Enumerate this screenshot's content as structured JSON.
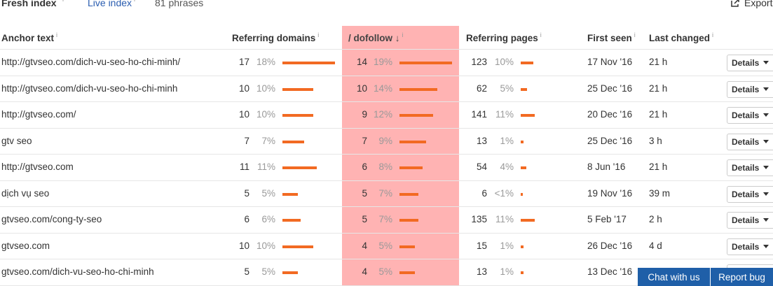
{
  "tabs": {
    "fresh_index": "Fresh index",
    "live_index": "Live index",
    "info_glyph": "i",
    "phrases": "81 phrases"
  },
  "export_label": "Export",
  "headers": {
    "anchor": "Anchor text",
    "ref_domains": "Referring domains",
    "dofollow": "/ dofollow",
    "dofollow_arrow": "↓",
    "ref_pages": "Referring pages",
    "first_seen": "First seen",
    "last_changed": "Last changed",
    "info": "i"
  },
  "details_label": "Details",
  "rows": [
    {
      "anchor": "http://gtvseo.com/dich-vu-seo-ho-chi-minh/",
      "rd": "17",
      "rd_pct": "18%",
      "rd_frac": 1.0,
      "df": "14",
      "df_pct": "19%",
      "df_frac": 1.0,
      "rp": "123",
      "rp_pct": "10%",
      "rp_frac": 0.24,
      "first": "17 Nov '16",
      "changed": "21 h"
    },
    {
      "anchor": "http://gtvseo.com/dich-vu-seo-ho-chi-minh",
      "rd": "10",
      "rd_pct": "10%",
      "rd_frac": 0.59,
      "df": "10",
      "df_pct": "14%",
      "df_frac": 0.72,
      "rp": "62",
      "rp_pct": "5%",
      "rp_frac": 0.12,
      "first": "25 Dec '16",
      "changed": "21 h"
    },
    {
      "anchor": "http://gtvseo.com/",
      "rd": "10",
      "rd_pct": "10%",
      "rd_frac": 0.59,
      "df": "9",
      "df_pct": "12%",
      "df_frac": 0.64,
      "rp": "141",
      "rp_pct": "11%",
      "rp_frac": 0.26,
      "first": "20 Dec '16",
      "changed": "21 h"
    },
    {
      "anchor": "gtv seo",
      "rd": "7",
      "rd_pct": "7%",
      "rd_frac": 0.41,
      "df": "7",
      "df_pct": "9%",
      "df_frac": 0.5,
      "rp": "13",
      "rp_pct": "1%",
      "rp_frac": 0.05,
      "first": "25 Dec '16",
      "changed": "3 h"
    },
    {
      "anchor": "http://gtvseo.com",
      "rd": "11",
      "rd_pct": "11%",
      "rd_frac": 0.65,
      "df": "6",
      "df_pct": "8%",
      "df_frac": 0.44,
      "rp": "54",
      "rp_pct": "4%",
      "rp_frac": 0.1,
      "first": "8 Jun '16",
      "changed": "21 h"
    },
    {
      "anchor": "dịch vụ seo",
      "rd": "5",
      "rd_pct": "5%",
      "rd_frac": 0.29,
      "df": "5",
      "df_pct": "7%",
      "df_frac": 0.36,
      "rp": "6",
      "rp_pct": "<1%",
      "rp_frac": 0.03,
      "first": "19 Nov '16",
      "changed": "39 m"
    },
    {
      "anchor": "gtvseo.com/cong-ty-seo",
      "rd": "6",
      "rd_pct": "6%",
      "rd_frac": 0.35,
      "df": "5",
      "df_pct": "7%",
      "df_frac": 0.36,
      "rp": "135",
      "rp_pct": "11%",
      "rp_frac": 0.26,
      "first": "5 Feb '17",
      "changed": "2 h"
    },
    {
      "anchor": "gtvseo.com",
      "rd": "10",
      "rd_pct": "10%",
      "rd_frac": 0.59,
      "df": "4",
      "df_pct": "5%",
      "df_frac": 0.29,
      "rp": "15",
      "rp_pct": "1%",
      "rp_frac": 0.05,
      "first": "26 Dec '16",
      "changed": "4 d"
    },
    {
      "anchor": "gtvseo.com/dich-vu-seo-ho-chi-minh",
      "rd": "5",
      "rd_pct": "5%",
      "rd_frac": 0.29,
      "df": "4",
      "df_pct": "5%",
      "df_frac": 0.29,
      "rp": "13",
      "rp_pct": "1%",
      "rp_frac": 0.05,
      "first": "13 Dec '16",
      "changed": ""
    }
  ],
  "chat_label": "Chat with us",
  "report_label": "Report bug",
  "colors": {
    "highlight": "#ffb3b3",
    "bar": "#f26a22",
    "link": "#2a5db0",
    "button_blue": "#1f5fa8"
  }
}
